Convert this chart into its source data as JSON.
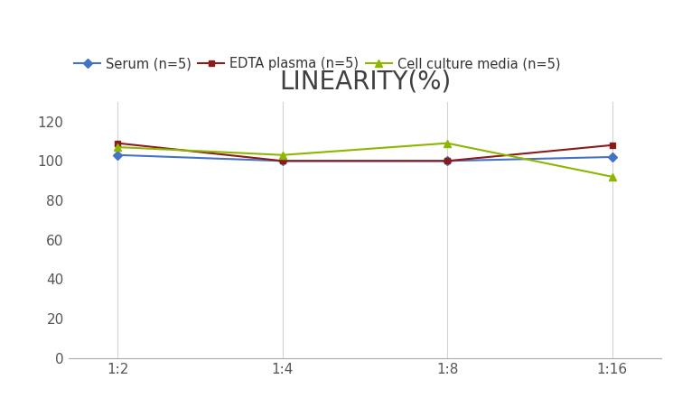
{
  "title": "LINEARITY(%)",
  "x_labels": [
    "1:2",
    "1:4",
    "1:8",
    "1:16"
  ],
  "series": [
    {
      "label": "Serum (n=5)",
      "values": [
        103,
        100,
        100,
        102
      ],
      "color": "#4472C4",
      "marker": "D",
      "markersize": 5
    },
    {
      "label": "EDTA plasma (n=5)",
      "values": [
        109,
        100,
        100,
        108
      ],
      "color": "#8B1A1A",
      "marker": "s",
      "markersize": 5
    },
    {
      "label": "Cell culture media (n=5)",
      "values": [
        107,
        103,
        109,
        92
      ],
      "color": "#8DB600",
      "marker": "^",
      "markersize": 6
    }
  ],
  "ylim": [
    0,
    130
  ],
  "yticks": [
    0,
    20,
    40,
    60,
    80,
    100,
    120
  ],
  "grid_color": "#D3D3D3",
  "background_color": "#FFFFFF",
  "title_fontsize": 20,
  "title_color": "#404040",
  "legend_fontsize": 10.5,
  "tick_fontsize": 11,
  "tick_color": "#555555",
  "linewidth": 1.5
}
